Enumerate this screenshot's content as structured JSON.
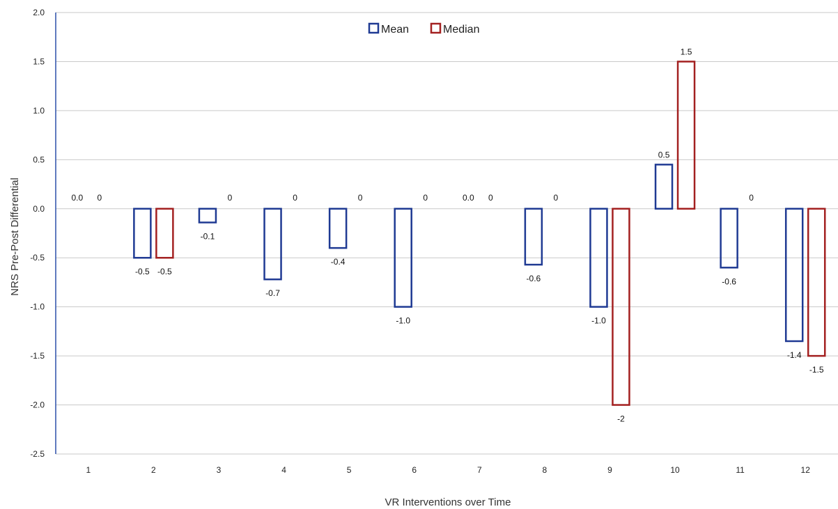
{
  "chart_data": {
    "type": "bar",
    "title": "",
    "xlabel": "VR Interventions over Time",
    "ylabel": "NRS Pre-Post Differential",
    "categories": [
      "1",
      "2",
      "3",
      "4",
      "5",
      "6",
      "7",
      "8",
      "9",
      "10",
      "11",
      "12"
    ],
    "ylim": [
      -2.5,
      2.0
    ],
    "yticks": [
      "2.0",
      "1.5",
      "1.0",
      "0.5",
      "0.0",
      "-0.5",
      "-1.0",
      "-1.5",
      "-2.0",
      "-2.5"
    ],
    "grid": true,
    "legend_position": "top-center",
    "series": [
      {
        "name": "Mean",
        "color": "#1f3a93",
        "values": [
          0.0,
          -0.5,
          -0.14,
          -0.72,
          -0.4,
          -1.0,
          0.0,
          -0.57,
          -1.0,
          0.45,
          -0.6,
          -1.35
        ],
        "labels": [
          "0.0",
          "-0.5",
          "-0.1",
          "-0.7",
          "-0.4",
          "-1.0",
          "0.0",
          "-0.6",
          "-1.0",
          "0.5",
          "-0.6",
          "-1.4"
        ]
      },
      {
        "name": "Median",
        "color": "#a32020",
        "values": [
          0,
          -0.5,
          0,
          0,
          0,
          0,
          0,
          0,
          -2,
          1.5,
          0,
          -1.5
        ],
        "labels": [
          "0",
          "-0.5",
          "0",
          "0",
          "0",
          "0",
          "0",
          "0",
          "-2",
          "1.5",
          "0",
          "-1.5"
        ]
      }
    ]
  }
}
